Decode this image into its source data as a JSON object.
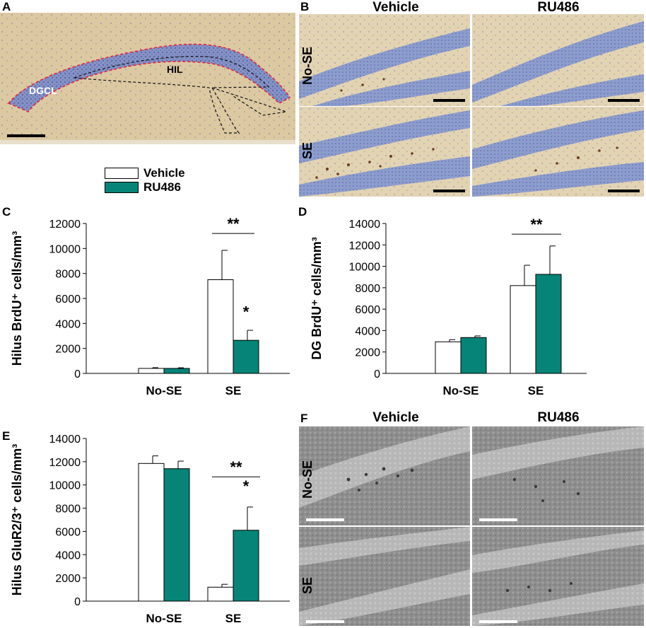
{
  "panels": {
    "A": {
      "letter": "A",
      "labels": {
        "dgcl": "DGCL",
        "hil": "HIL"
      }
    },
    "B": {
      "letter": "B",
      "col_heads": [
        "Vehicle",
        "RU486"
      ],
      "row_labels": [
        "No-SE",
        "SE"
      ]
    },
    "F": {
      "letter": "F",
      "col_heads": [
        "Vehicle",
        "RU486"
      ],
      "row_labels": [
        "No-SE",
        "SE"
      ]
    }
  },
  "legend": {
    "items": [
      {
        "label": "Vehicle",
        "color": "#ffffff"
      },
      {
        "label": "RU486",
        "color": "#058477"
      }
    ]
  },
  "colors": {
    "vehicle": "#ffffff",
    "ru486": "#058477",
    "tissue_bg": "#dcc9a2",
    "cell_layer": "#7f8fc2"
  },
  "chart_data": [
    {
      "panel": "C",
      "type": "bar",
      "categories": [
        "No-SE",
        "SE"
      ],
      "series": [
        {
          "name": "Vehicle",
          "values": [
            400,
            7500
          ],
          "errors": [
            60,
            2350
          ]
        },
        {
          "name": "RU486",
          "values": [
            400,
            2650
          ],
          "errors": [
            50,
            800
          ]
        }
      ],
      "ylabel": "Hilus BrdU⁺ cells/mm³",
      "ylim": [
        0,
        12000
      ],
      "yticks": [
        "0",
        "2000",
        "4000",
        "6000",
        "8000",
        "10000",
        "12000"
      ],
      "annotations": [
        "**",
        "*"
      ]
    },
    {
      "panel": "D",
      "type": "bar",
      "categories": [
        "No-SE",
        "SE"
      ],
      "series": [
        {
          "name": "Vehicle",
          "values": [
            2950,
            8200
          ],
          "errors": [
            200,
            1900
          ]
        },
        {
          "name": "RU486",
          "values": [
            3350,
            9250
          ],
          "errors": [
            150,
            2650
          ]
        }
      ],
      "ylabel": "DG BrdU⁺ cells/mm³",
      "ylim": [
        0,
        14000
      ],
      "yticks": [
        "0",
        "2000",
        "4000",
        "6000",
        "8000",
        "10000",
        "12000",
        "14000"
      ],
      "annotations": [
        "**"
      ]
    },
    {
      "panel": "E",
      "type": "bar",
      "categories": [
        "No-SE",
        "SE"
      ],
      "series": [
        {
          "name": "Vehicle",
          "values": [
            11850,
            1200
          ],
          "errors": [
            650,
            250
          ]
        },
        {
          "name": "RU486",
          "values": [
            11400,
            6100
          ],
          "errors": [
            650,
            2000
          ]
        }
      ],
      "ylabel": "Hilus GluR2/3⁺ cells/mm³",
      "ylim": [
        0,
        14000
      ],
      "yticks": [
        "0",
        "2000",
        "4000",
        "6000",
        "8000",
        "10000",
        "12000",
        "14000"
      ],
      "annotations": [
        "**",
        "*"
      ]
    }
  ]
}
